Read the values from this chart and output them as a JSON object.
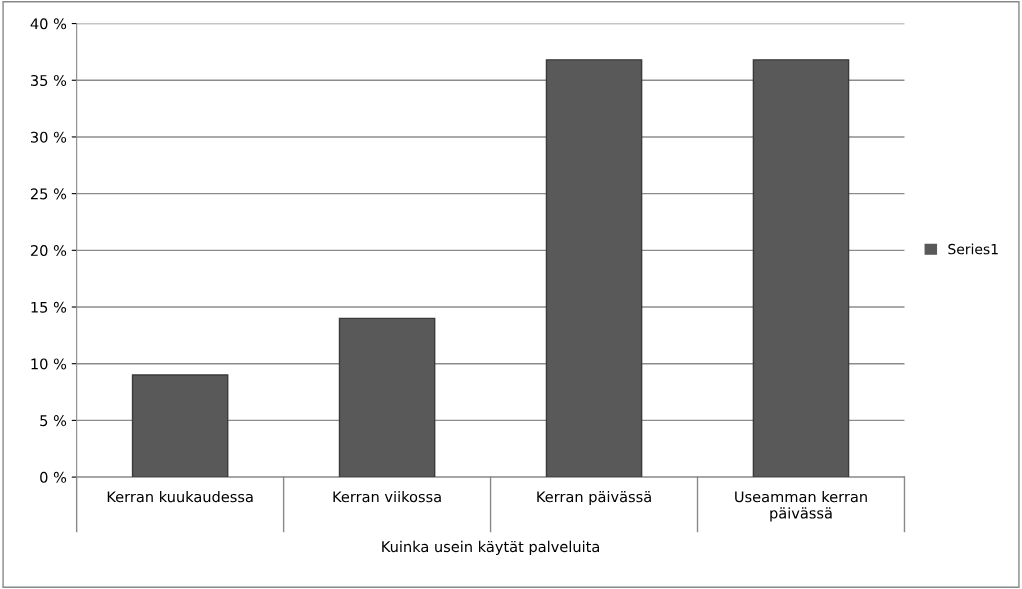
{
  "chart_data": {
    "type": "bar",
    "xlabel": "Kuinka usein käytät palveluita",
    "categories": [
      "Kerran kuukaudessa",
      "Kerran viikossa",
      "Kerran päivässä",
      "Useamman kerran\npäivässä"
    ],
    "series": [
      {
        "name": "Series1",
        "color": "#595959",
        "values": [
          9,
          14,
          36.8,
          36.8
        ]
      }
    ],
    "ylim": [
      0,
      40
    ],
    "yticks": [
      {
        "value": 0,
        "label": "0 %"
      },
      {
        "value": 5,
        "label": "5 %"
      },
      {
        "value": 10,
        "label": "10 %"
      },
      {
        "value": 15,
        "label": "15 %"
      },
      {
        "value": 20,
        "label": "20 %"
      },
      {
        "value": 25,
        "label": "25 %"
      },
      {
        "value": 30,
        "label": "30 %"
      },
      {
        "value": 35,
        "label": "35 %"
      },
      {
        "value": 40,
        "label": "40 %"
      }
    ],
    "grid": "y",
    "legend": "right"
  }
}
